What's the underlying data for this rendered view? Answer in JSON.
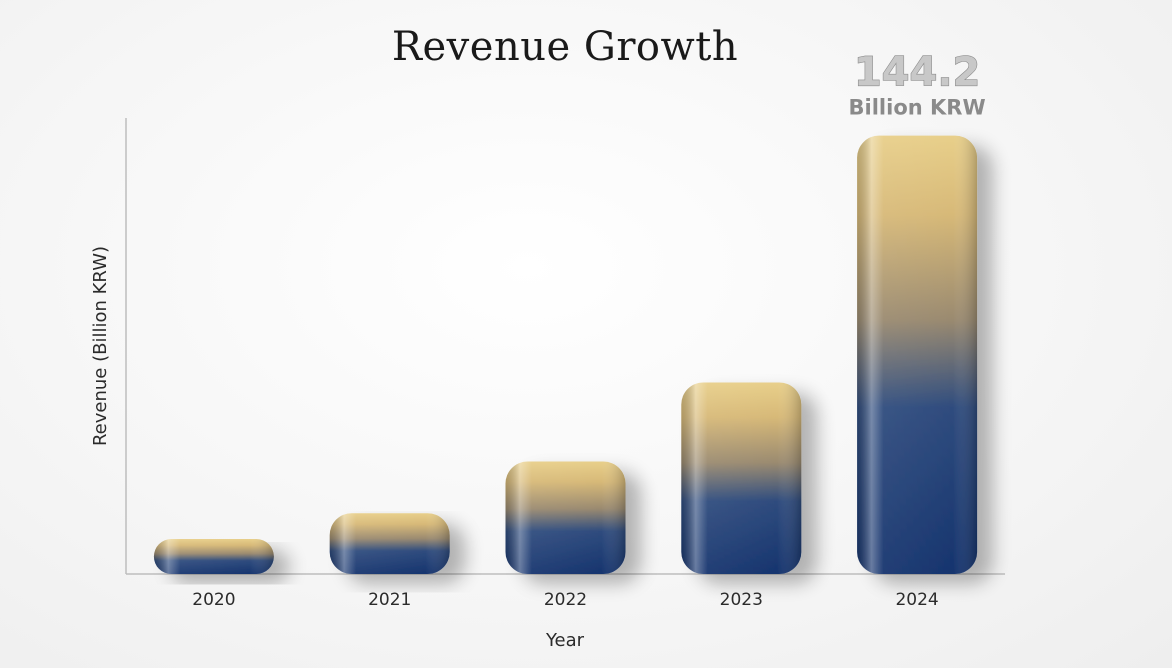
{
  "chart_data": {
    "type": "bar",
    "title": "Revenue Growth",
    "xlabel": "Year",
    "ylabel": "Revenue (Billion KRW)",
    "categories": [
      "2020",
      "2021",
      "2022",
      "2023",
      "2024"
    ],
    "values": [
      11.5,
      20,
      37,
      63,
      144.2
    ],
    "ylim": [
      0,
      150
    ],
    "grid": false,
    "annotation": {
      "category": "2024",
      "value_text": "144.2",
      "unit_text": "Billion KRW"
    },
    "colors": {
      "bar_top": "#e8cf8a",
      "bar_mid": "#c9a865",
      "bar_bottom": "#16346e",
      "axis": "#bdbdbd"
    }
  }
}
